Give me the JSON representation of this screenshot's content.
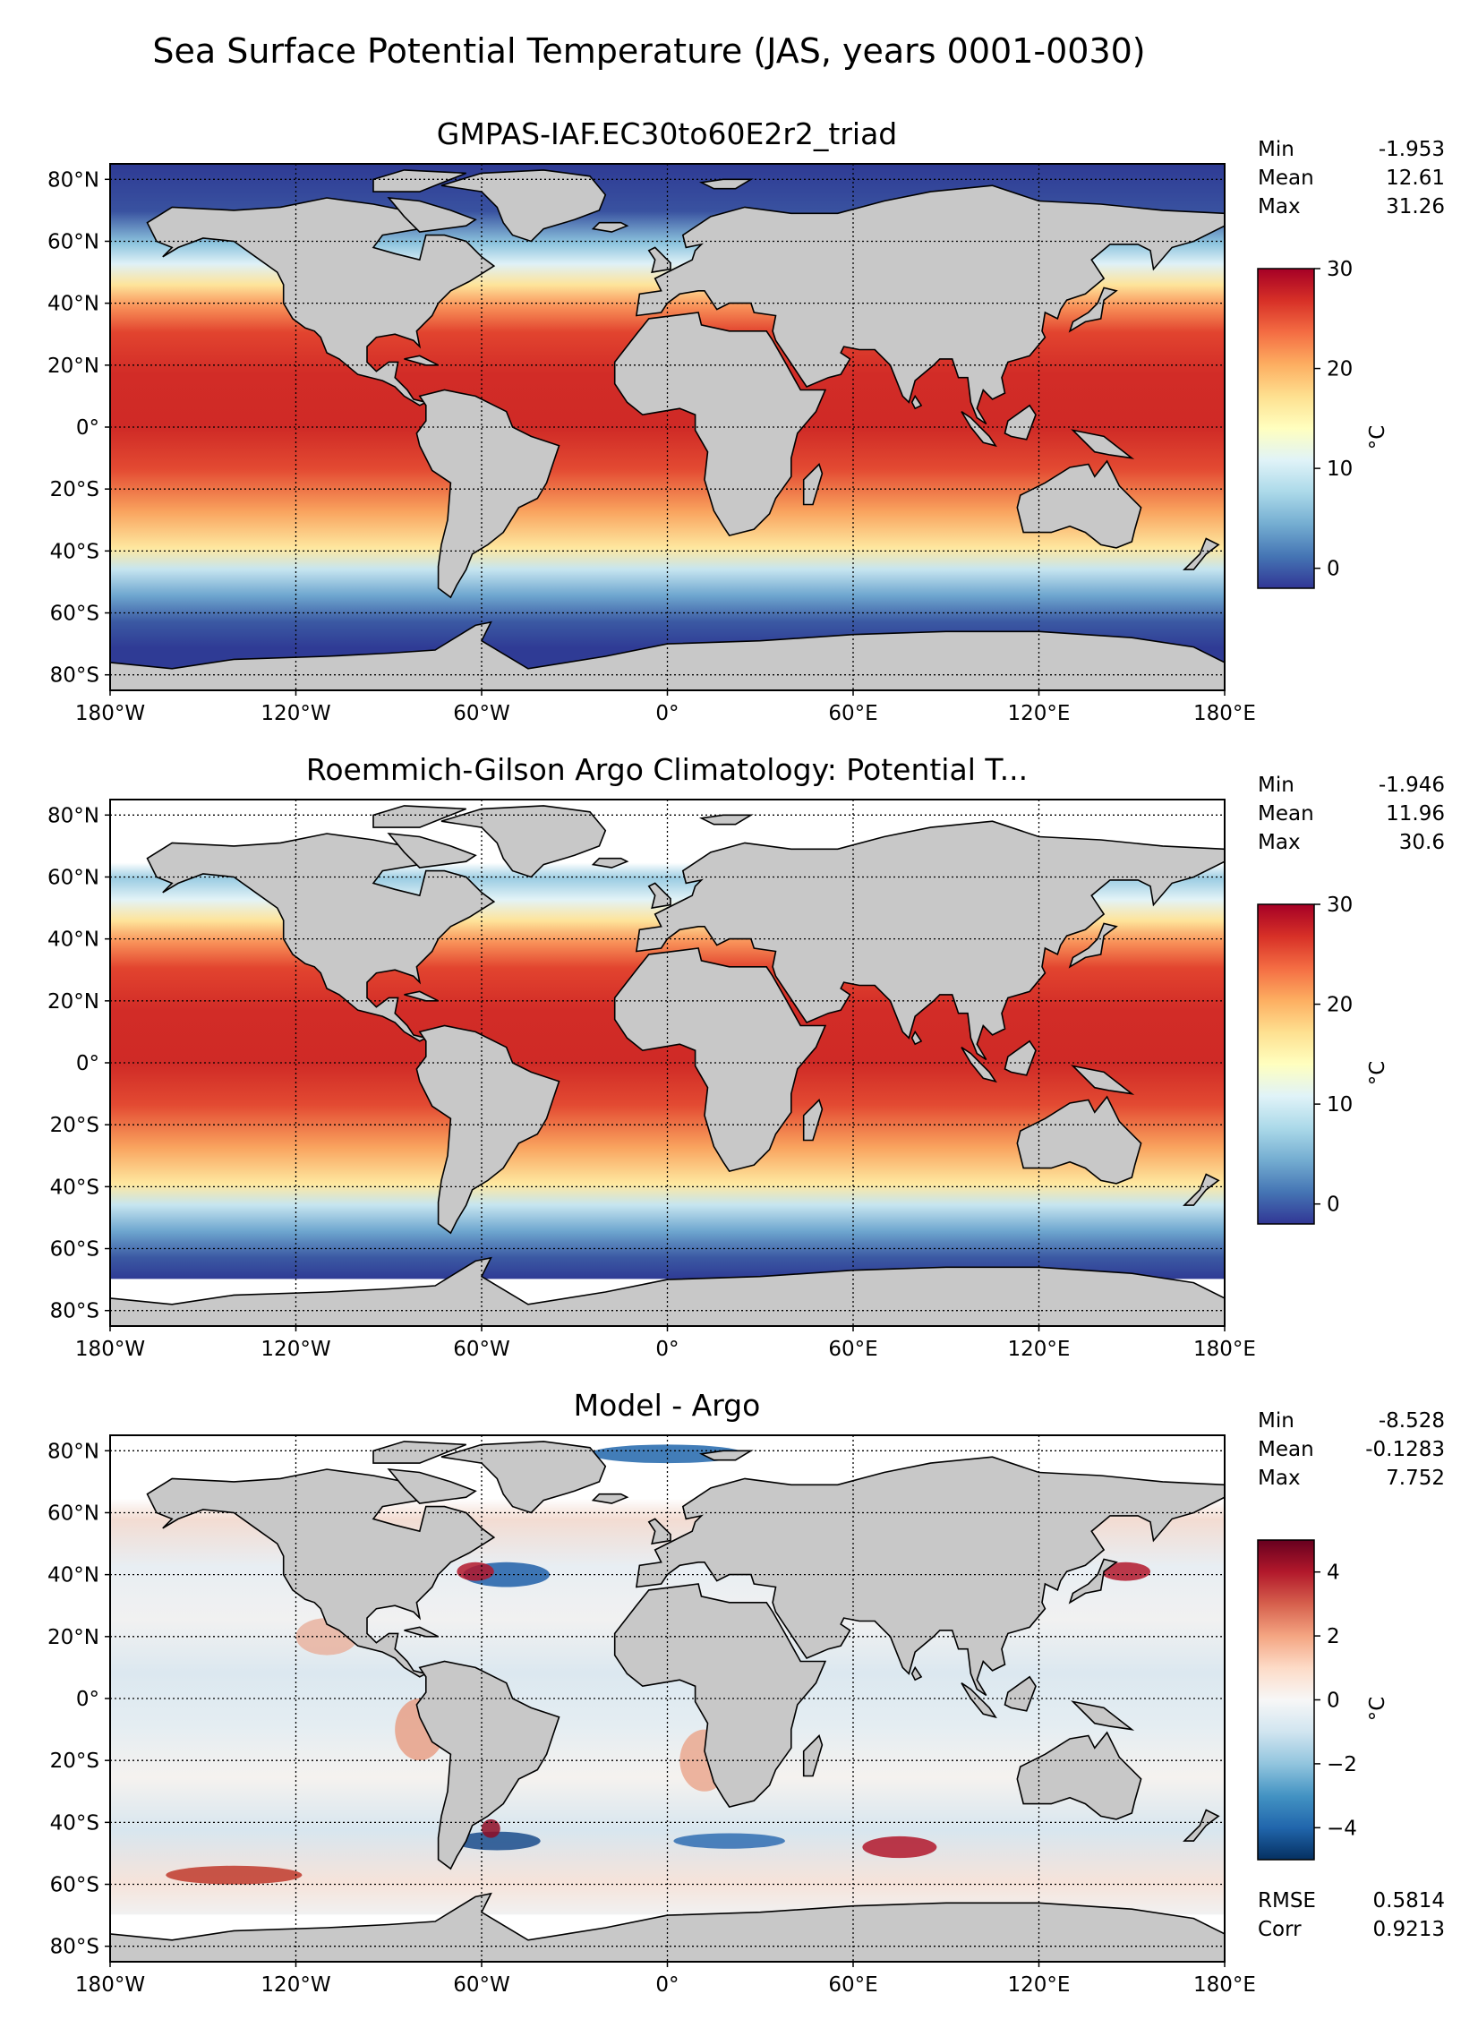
{
  "figure": {
    "suptitle": "Sea Surface Potential Temperature (JAS, years 0001-0030)"
  },
  "colors": {
    "land": "#c8c8c8",
    "no_data": "#ffffff",
    "temperature_colormap": [
      "#313695",
      "#4575b4",
      "#74add1",
      "#abd9e9",
      "#e0f3f8",
      "#ffffbf",
      "#fee090",
      "#fdae61",
      "#f46d43",
      "#d73027",
      "#a50026"
    ],
    "difference_colormap": [
      "#053061",
      "#2166ac",
      "#4393c3",
      "#92c5de",
      "#d1e5f0",
      "#f7f7f7",
      "#fddbc7",
      "#f4a582",
      "#d6604d",
      "#b2182b",
      "#67001f"
    ]
  },
  "chart_data": [
    {
      "type": "heatmap",
      "title": "GMPAS-IAF.EC30to60E2r2_triad",
      "projection": "plate carree (world map)",
      "x_ticks": [
        "180°W",
        "120°W",
        "60°W",
        "0°",
        "60°E",
        "120°E",
        "180°E"
      ],
      "y_ticks": [
        "80°N",
        "60°N",
        "40°N",
        "20°N",
        "0°",
        "20°S",
        "40°S",
        "60°S",
        "80°S"
      ],
      "grid": "dotted",
      "stats": [
        {
          "label": "Min",
          "value": "-1.953"
        },
        {
          "label": "Mean",
          "value": "12.61"
        },
        {
          "label": "Max",
          "value": "31.26"
        }
      ],
      "colorbar": {
        "label": "°C",
        "ticks": [
          "0",
          "10",
          "20",
          "30"
        ],
        "range": [
          -2,
          30
        ],
        "colormap": "RdYlBu_r"
      }
    },
    {
      "type": "heatmap",
      "title": "Roemmich-Gilson Argo Climatology: Potential T...",
      "projection": "plate carree (world map)",
      "x_ticks": [
        "180°W",
        "120°W",
        "60°W",
        "0°",
        "60°E",
        "120°E",
        "180°E"
      ],
      "y_ticks": [
        "80°N",
        "60°N",
        "40°N",
        "20°N",
        "0°",
        "20°S",
        "40°S",
        "60°S",
        "80°S"
      ],
      "grid": "dotted",
      "stats": [
        {
          "label": "Min",
          "value": "-1.946"
        },
        {
          "label": "Mean",
          "value": "11.96"
        },
        {
          "label": "Max",
          "value": "30.6"
        }
      ],
      "colorbar": {
        "label": "°C",
        "ticks": [
          "0",
          "10",
          "20",
          "30"
        ],
        "range": [
          -2,
          30
        ],
        "colormap": "RdYlBu_r"
      }
    },
    {
      "type": "heatmap",
      "title": "Model - Argo",
      "projection": "plate carree (world map)",
      "x_ticks": [
        "180°W",
        "120°W",
        "60°W",
        "0°",
        "60°E",
        "120°E",
        "180°E"
      ],
      "y_ticks": [
        "80°N",
        "60°N",
        "40°N",
        "20°N",
        "0°",
        "20°S",
        "40°S",
        "60°S",
        "80°S"
      ],
      "grid": "dotted",
      "stats": [
        {
          "label": "Min",
          "value": "-8.528"
        },
        {
          "label": "Mean",
          "value": "-0.1283"
        },
        {
          "label": "Max",
          "value": "7.752"
        }
      ],
      "extra_stats": [
        {
          "label": "RMSE",
          "value": "0.5814"
        },
        {
          "label": "Corr",
          "value": "0.9213"
        }
      ],
      "colorbar": {
        "label": "°C",
        "ticks": [
          "4",
          "2",
          "0",
          "−2",
          "−4"
        ],
        "tick_values": [
          4,
          2,
          0,
          -2,
          -4
        ],
        "range": [
          -5,
          5
        ],
        "colormap": "RdBu_r"
      }
    }
  ]
}
